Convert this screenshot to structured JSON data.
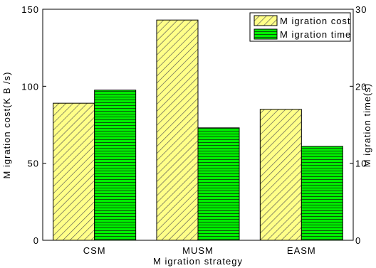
{
  "chart_data": {
    "type": "bar",
    "categories": [
      "CSM",
      "MUSM",
      "EASM"
    ],
    "xlabel": "M igration strategy",
    "ylabel_left": "M igration cost(K B /s)",
    "ylabel_right": "M igration time(s)",
    "ylim_left": [
      0,
      150
    ],
    "ylim_right": [
      0,
      30
    ],
    "yticks_left": [
      0,
      50,
      100,
      150
    ],
    "yticks_right": [
      0,
      10,
      20,
      30
    ],
    "grid": false,
    "legend_position": "top-right",
    "series": [
      {
        "name": "M igration cost",
        "axis": "left",
        "values": [
          89,
          143,
          85
        ],
        "color": "#ffff88",
        "pattern": "diagonal-hatch"
      },
      {
        "name": "M igration time",
        "axis": "right",
        "values": [
          19.5,
          14.6,
          12.2
        ],
        "color": "#00ee00",
        "pattern": "horizontal-lines"
      }
    ]
  }
}
